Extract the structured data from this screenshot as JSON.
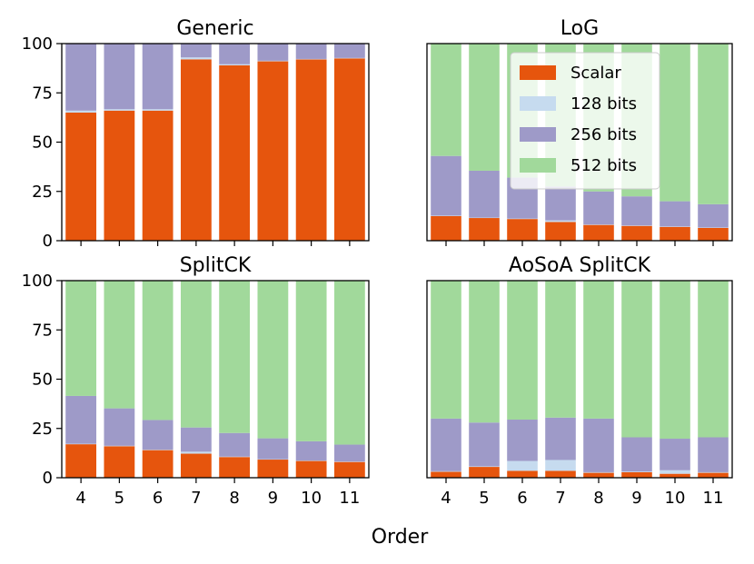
{
  "figure": {
    "xlabel": "Order",
    "colors": {
      "Scalar": "#e6550d",
      "128 bits": "#c6dbef",
      "256 bits": "#9e9ac8",
      "512 bits": "#a1d99b"
    }
  },
  "chart_data": [
    {
      "type": "bar",
      "stacked": true,
      "title": "Generic",
      "categories": [
        "4",
        "5",
        "6",
        "7",
        "8",
        "9",
        "10",
        "11"
      ],
      "ylim": [
        0,
        100
      ],
      "yticks": [
        0,
        25,
        50,
        75,
        100
      ],
      "xlabel": "Order",
      "ylabel": "",
      "show_xticklabels": false,
      "show_yticklabels": true,
      "series": [
        {
          "name": "Scalar",
          "values": [
            65,
            66,
            66,
            92,
            89,
            91,
            92,
            92.5
          ]
        },
        {
          "name": "128 bits",
          "values": [
            1,
            0.7,
            0.7,
            1,
            0.5,
            0.3,
            0.2,
            0.2
          ]
        },
        {
          "name": "256 bits",
          "values": [
            34,
            33.3,
            33.3,
            7,
            10.5,
            8.7,
            7.8,
            7.3
          ]
        },
        {
          "name": "512 bits",
          "values": [
            0,
            0,
            0,
            0,
            0,
            0,
            0,
            0
          ]
        }
      ]
    },
    {
      "type": "bar",
      "stacked": true,
      "title": "LoG",
      "categories": [
        "4",
        "5",
        "6",
        "7",
        "8",
        "9",
        "10",
        "11"
      ],
      "ylim": [
        0,
        100
      ],
      "yticks": [
        0,
        25,
        50,
        75,
        100
      ],
      "xlabel": "Order",
      "ylabel": "",
      "show_xticklabels": false,
      "show_yticklabels": false,
      "legend": {
        "location": "upper center",
        "entries": [
          "Scalar",
          "128 bits",
          "256 bits",
          "512 bits"
        ]
      },
      "series": [
        {
          "name": "Scalar",
          "values": [
            12.5,
            11.5,
            11,
            9.5,
            8,
            7.5,
            7,
            6.5
          ]
        },
        {
          "name": "128 bits",
          "values": [
            0.2,
            0.2,
            0.2,
            0.8,
            0.2,
            0.2,
            0.2,
            0.2
          ]
        },
        {
          "name": "256 bits",
          "values": [
            30.3,
            23.8,
            20.8,
            17.2,
            16.8,
            14.8,
            12.8,
            11.8
          ]
        },
        {
          "name": "512 bits",
          "values": [
            57,
            64.5,
            68,
            72.5,
            75,
            77.5,
            80,
            81.5
          ]
        }
      ]
    },
    {
      "type": "bar",
      "stacked": true,
      "title": "SplitCK",
      "categories": [
        "4",
        "5",
        "6",
        "7",
        "8",
        "9",
        "10",
        "11"
      ],
      "ylim": [
        0,
        100
      ],
      "yticks": [
        0,
        25,
        50,
        75,
        100
      ],
      "xlabel": "Order",
      "ylabel": "",
      "show_xticklabels": true,
      "show_yticklabels": true,
      "series": [
        {
          "name": "Scalar",
          "values": [
            17,
            16,
            14,
            12.2,
            10.5,
            9.2,
            8.5,
            8
          ]
        },
        {
          "name": "128 bits",
          "values": [
            0.2,
            0.2,
            0.2,
            1,
            0.2,
            0.2,
            0.2,
            0.2
          ]
        },
        {
          "name": "256 bits",
          "values": [
            24.3,
            19,
            15.1,
            12.3,
            12,
            10.6,
            9.8,
            8.6
          ]
        },
        {
          "name": "512 bits",
          "values": [
            58.5,
            64.8,
            70.7,
            74.5,
            77.3,
            80,
            81.5,
            83.2
          ]
        }
      ]
    },
    {
      "type": "bar",
      "stacked": true,
      "title": "AoSoA SplitCK",
      "categories": [
        "4",
        "5",
        "6",
        "7",
        "8",
        "9",
        "10",
        "11"
      ],
      "ylim": [
        0,
        100
      ],
      "yticks": [
        0,
        25,
        50,
        75,
        100
      ],
      "xlabel": "Order",
      "ylabel": "",
      "show_xticklabels": true,
      "show_yticklabels": false,
      "series": [
        {
          "name": "Scalar",
          "values": [
            3,
            5.5,
            3.5,
            3.5,
            2.5,
            2.8,
            2,
            2.5
          ]
        },
        {
          "name": "128 bits",
          "values": [
            0.3,
            0.3,
            5,
            5.5,
            0.3,
            0.3,
            1.8,
            0.3
          ]
        },
        {
          "name": "256 bits",
          "values": [
            26.7,
            22.2,
            21,
            21.5,
            27.2,
            17.4,
            16,
            17.7
          ]
        },
        {
          "name": "512 bits",
          "values": [
            70,
            72,
            70.5,
            69.5,
            70,
            79.5,
            80.2,
            79.5
          ]
        }
      ]
    }
  ]
}
